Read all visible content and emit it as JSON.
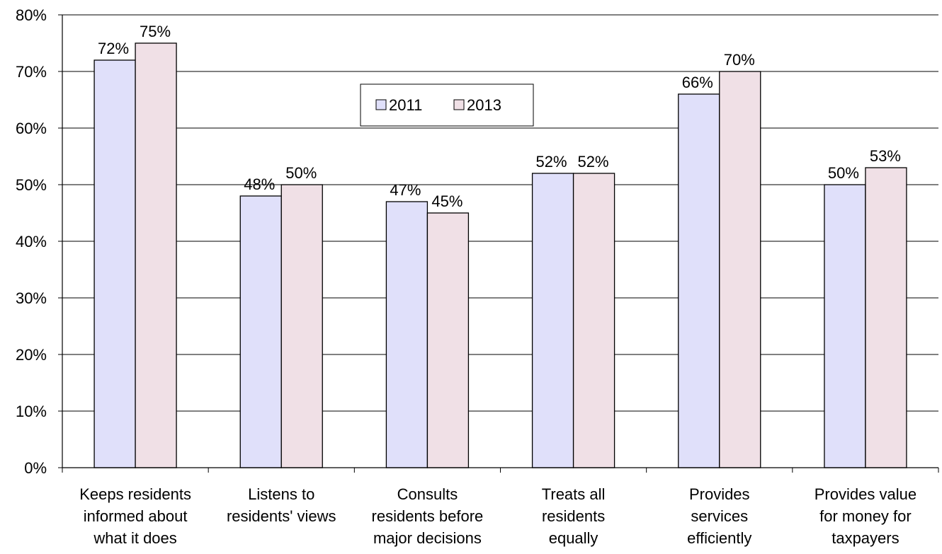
{
  "chart_data": {
    "type": "bar",
    "categories": [
      [
        "Keeps residents",
        "informed about",
        "what it does"
      ],
      [
        "Listens to",
        "residents' views"
      ],
      [
        "Consults",
        "residents before",
        "major decisions"
      ],
      [
        "Treats all",
        "residents",
        "equally"
      ],
      [
        "Provides",
        "services",
        "efficiently"
      ],
      [
        "Provides value",
        "for money for",
        "taxpayers"
      ]
    ],
    "series": [
      {
        "name": "2011",
        "values": [
          72,
          48,
          47,
          52,
          66,
          50
        ],
        "color": "#e0e0fa"
      },
      {
        "name": "2013",
        "values": [
          75,
          50,
          45,
          52,
          70,
          53
        ],
        "color": "#f0e0e6"
      }
    ],
    "data_labels": [
      [
        "72%",
        "48%",
        "47%",
        "52%",
        "66%",
        "50%"
      ],
      [
        "75%",
        "50%",
        "45%",
        "52%",
        "70%",
        "53%"
      ]
    ],
    "y_ticks": [
      "0%",
      "10%",
      "20%",
      "30%",
      "40%",
      "50%",
      "60%",
      "70%",
      "80%"
    ],
    "ylim": [
      0,
      80
    ],
    "grid": true,
    "legend_position": "top-center"
  }
}
